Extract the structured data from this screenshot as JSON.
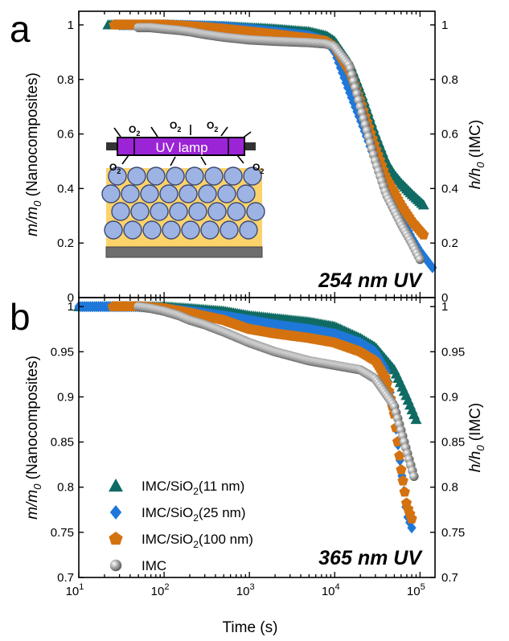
{
  "figure": {
    "panel_a_label": "a",
    "panel_b_label": "b",
    "xlabel": "Time (s)",
    "colors": {
      "IMC/SiO2(11 nm)": "#0f6b63",
      "IMC/SiO2(25 nm)": "#1f78d9",
      "IMC/SiO2(100 nm)": "#d4720f",
      "IMC": "#8c8c8c"
    },
    "inset": {
      "lamp_label": "UV lamp",
      "o2_labels": [
        "O",
        "O",
        "O",
        "O",
        "O"
      ],
      "o2_subscript": "2"
    },
    "legend": [
      {
        "prefix": "IMC/SiO",
        "sub": "2",
        "suffix": "(11 nm)",
        "marker": "triangle",
        "color": "#0f6b63"
      },
      {
        "prefix": "IMC/SiO",
        "sub": "2",
        "suffix": "(25 nm)",
        "marker": "diamond",
        "color": "#1f78d9"
      },
      {
        "prefix": "IMC/SiO",
        "sub": "2",
        "suffix": "(100 nm)",
        "marker": "pentagon",
        "color": "#d4720f"
      },
      {
        "prefix": "IMC",
        "sub": "",
        "suffix": "",
        "marker": "sphere",
        "color": "#8c8c8c"
      }
    ]
  },
  "chart_data": [
    {
      "type": "scatter",
      "panel": "a",
      "annotation": "254 nm UV",
      "xlabel": "Time (s)",
      "xscale": "log",
      "xlim": [
        10,
        150000
      ],
      "ylabel_left": {
        "main": "m/m",
        "sub": "0",
        "rest": " (Nanocomposites)"
      },
      "ylabel_right": {
        "main": "h/h",
        "sub": "0",
        "rest": " (IMC)"
      },
      "ylim": [
        0,
        1.05
      ],
      "yticks": [
        0,
        0.2,
        0.4,
        0.6,
        0.8,
        1
      ],
      "ytick_labels": [
        "0",
        "0.2",
        "0.4",
        "0.6",
        "0.8",
        "1"
      ],
      "series": [
        {
          "name": "IMC/SiO2(11 nm)",
          "marker": "triangle",
          "x": [
            22,
            50,
            100,
            200,
            500,
            1000,
            2000,
            5000,
            8000,
            10000,
            15000,
            20000,
            30000,
            40000,
            50000,
            60000,
            80000,
            110000
          ],
          "y": [
            1,
            1,
            1,
            0.998,
            0.995,
            0.99,
            0.985,
            0.975,
            0.96,
            0.94,
            0.86,
            0.76,
            0.6,
            0.5,
            0.45,
            0.42,
            0.38,
            0.34
          ]
        },
        {
          "name": "IMC/SiO2(25 nm)",
          "marker": "diamond",
          "x": [
            30,
            60,
            100,
            200,
            500,
            1000,
            2000,
            5000,
            8000,
            10000,
            15000,
            20000,
            30000,
            40000,
            60000,
            80000,
            100000,
            140000
          ],
          "y": [
            1,
            1,
            1,
            0.998,
            0.993,
            0.985,
            0.975,
            0.96,
            0.94,
            0.9,
            0.75,
            0.65,
            0.5,
            0.42,
            0.3,
            0.22,
            0.17,
            0.11
          ]
        },
        {
          "name": "IMC/SiO2(100 nm)",
          "marker": "pentagon",
          "x": [
            26,
            50,
            100,
            200,
            500,
            1000,
            2000,
            5000,
            8000,
            10000,
            15000,
            20000,
            30000,
            40000,
            60000,
            80000,
            110000
          ],
          "y": [
            1,
            1,
            1,
            0.995,
            0.985,
            0.975,
            0.965,
            0.95,
            0.94,
            0.92,
            0.83,
            0.72,
            0.55,
            0.44,
            0.34,
            0.28,
            0.23
          ]
        },
        {
          "name": "IMC",
          "marker": "sphere",
          "x": [
            50,
            70,
            100,
            150,
            200,
            300,
            500,
            1000,
            2000,
            5000,
            8000,
            10000,
            15000,
            20000,
            30000,
            40000,
            60000,
            80000,
            100000
          ],
          "y": [
            0.99,
            0.99,
            0.985,
            0.98,
            0.975,
            0.965,
            0.955,
            0.945,
            0.94,
            0.935,
            0.93,
            0.92,
            0.85,
            0.7,
            0.5,
            0.38,
            0.27,
            0.2,
            0.14
          ]
        }
      ]
    },
    {
      "type": "scatter",
      "panel": "b",
      "annotation": "365 nm UV",
      "xlabel": "Time (s)",
      "xscale": "log",
      "xlim": [
        10,
        150000
      ],
      "xticks": [
        10,
        100,
        1000,
        10000,
        100000
      ],
      "xtick_labels": [
        {
          "base": "10",
          "exp": "1"
        },
        {
          "base": "10",
          "exp": "2"
        },
        {
          "base": "10",
          "exp": "3"
        },
        {
          "base": "10",
          "exp": "4"
        },
        {
          "base": "10",
          "exp": "5"
        }
      ],
      "ylabel_left": {
        "main": "m/m",
        "sub": "0",
        "rest": " (Nanocomposites)"
      },
      "ylabel_right": {
        "main": "h/h",
        "sub": "0",
        "rest": " (IMC)"
      },
      "ylim": [
        0.7,
        1.01
      ],
      "yticks": [
        0.7,
        0.75,
        0.8,
        0.85,
        0.9,
        0.95,
        1
      ],
      "ytick_labels": [
        "0.7",
        "0.75",
        "0.8",
        "0.85",
        "0.9",
        "0.95",
        "1"
      ],
      "series": [
        {
          "name": "IMC/SiO2(11 nm)",
          "marker": "triangle",
          "x": [
            10,
            50,
            100,
            200,
            500,
            1000,
            2000,
            5000,
            10000,
            20000,
            30000,
            50000,
            70000,
            90000
          ],
          "y": [
            1,
            1,
            1,
            0.998,
            0.995,
            0.99,
            0.987,
            0.983,
            0.978,
            0.965,
            0.955,
            0.93,
            0.9,
            0.875
          ]
        },
        {
          "name": "IMC/SiO2(25 nm)",
          "marker": "diamond",
          "x": [
            10,
            50,
            100,
            200,
            500,
            1000,
            2000,
            5000,
            10000,
            20000,
            30000,
            40000,
            50000,
            60000,
            70000,
            80000
          ],
          "y": [
            1,
            1,
            0.998,
            0.995,
            0.99,
            0.985,
            0.98,
            0.975,
            0.97,
            0.96,
            0.95,
            0.93,
            0.88,
            0.82,
            0.77,
            0.755
          ]
        },
        {
          "name": "IMC/SiO2(100 nm)",
          "marker": "pentagon",
          "x": [
            25,
            50,
            100,
            200,
            500,
            1000,
            2000,
            5000,
            10000,
            20000,
            30000,
            40000,
            50000,
            60000,
            70000,
            80000
          ],
          "y": [
            1,
            1,
            0.998,
            0.993,
            0.985,
            0.975,
            0.97,
            0.965,
            0.96,
            0.95,
            0.94,
            0.92,
            0.88,
            0.82,
            0.78,
            0.765
          ]
        },
        {
          "name": "IMC",
          "marker": "sphere",
          "x": [
            50,
            70,
            100,
            150,
            200,
            300,
            500,
            1000,
            2000,
            5000,
            10000,
            20000,
            30000,
            50000,
            70000,
            85000
          ],
          "y": [
            1,
            0.998,
            0.995,
            0.99,
            0.985,
            0.98,
            0.972,
            0.96,
            0.95,
            0.94,
            0.935,
            0.93,
            0.92,
            0.89,
            0.84,
            0.812
          ]
        }
      ]
    }
  ]
}
